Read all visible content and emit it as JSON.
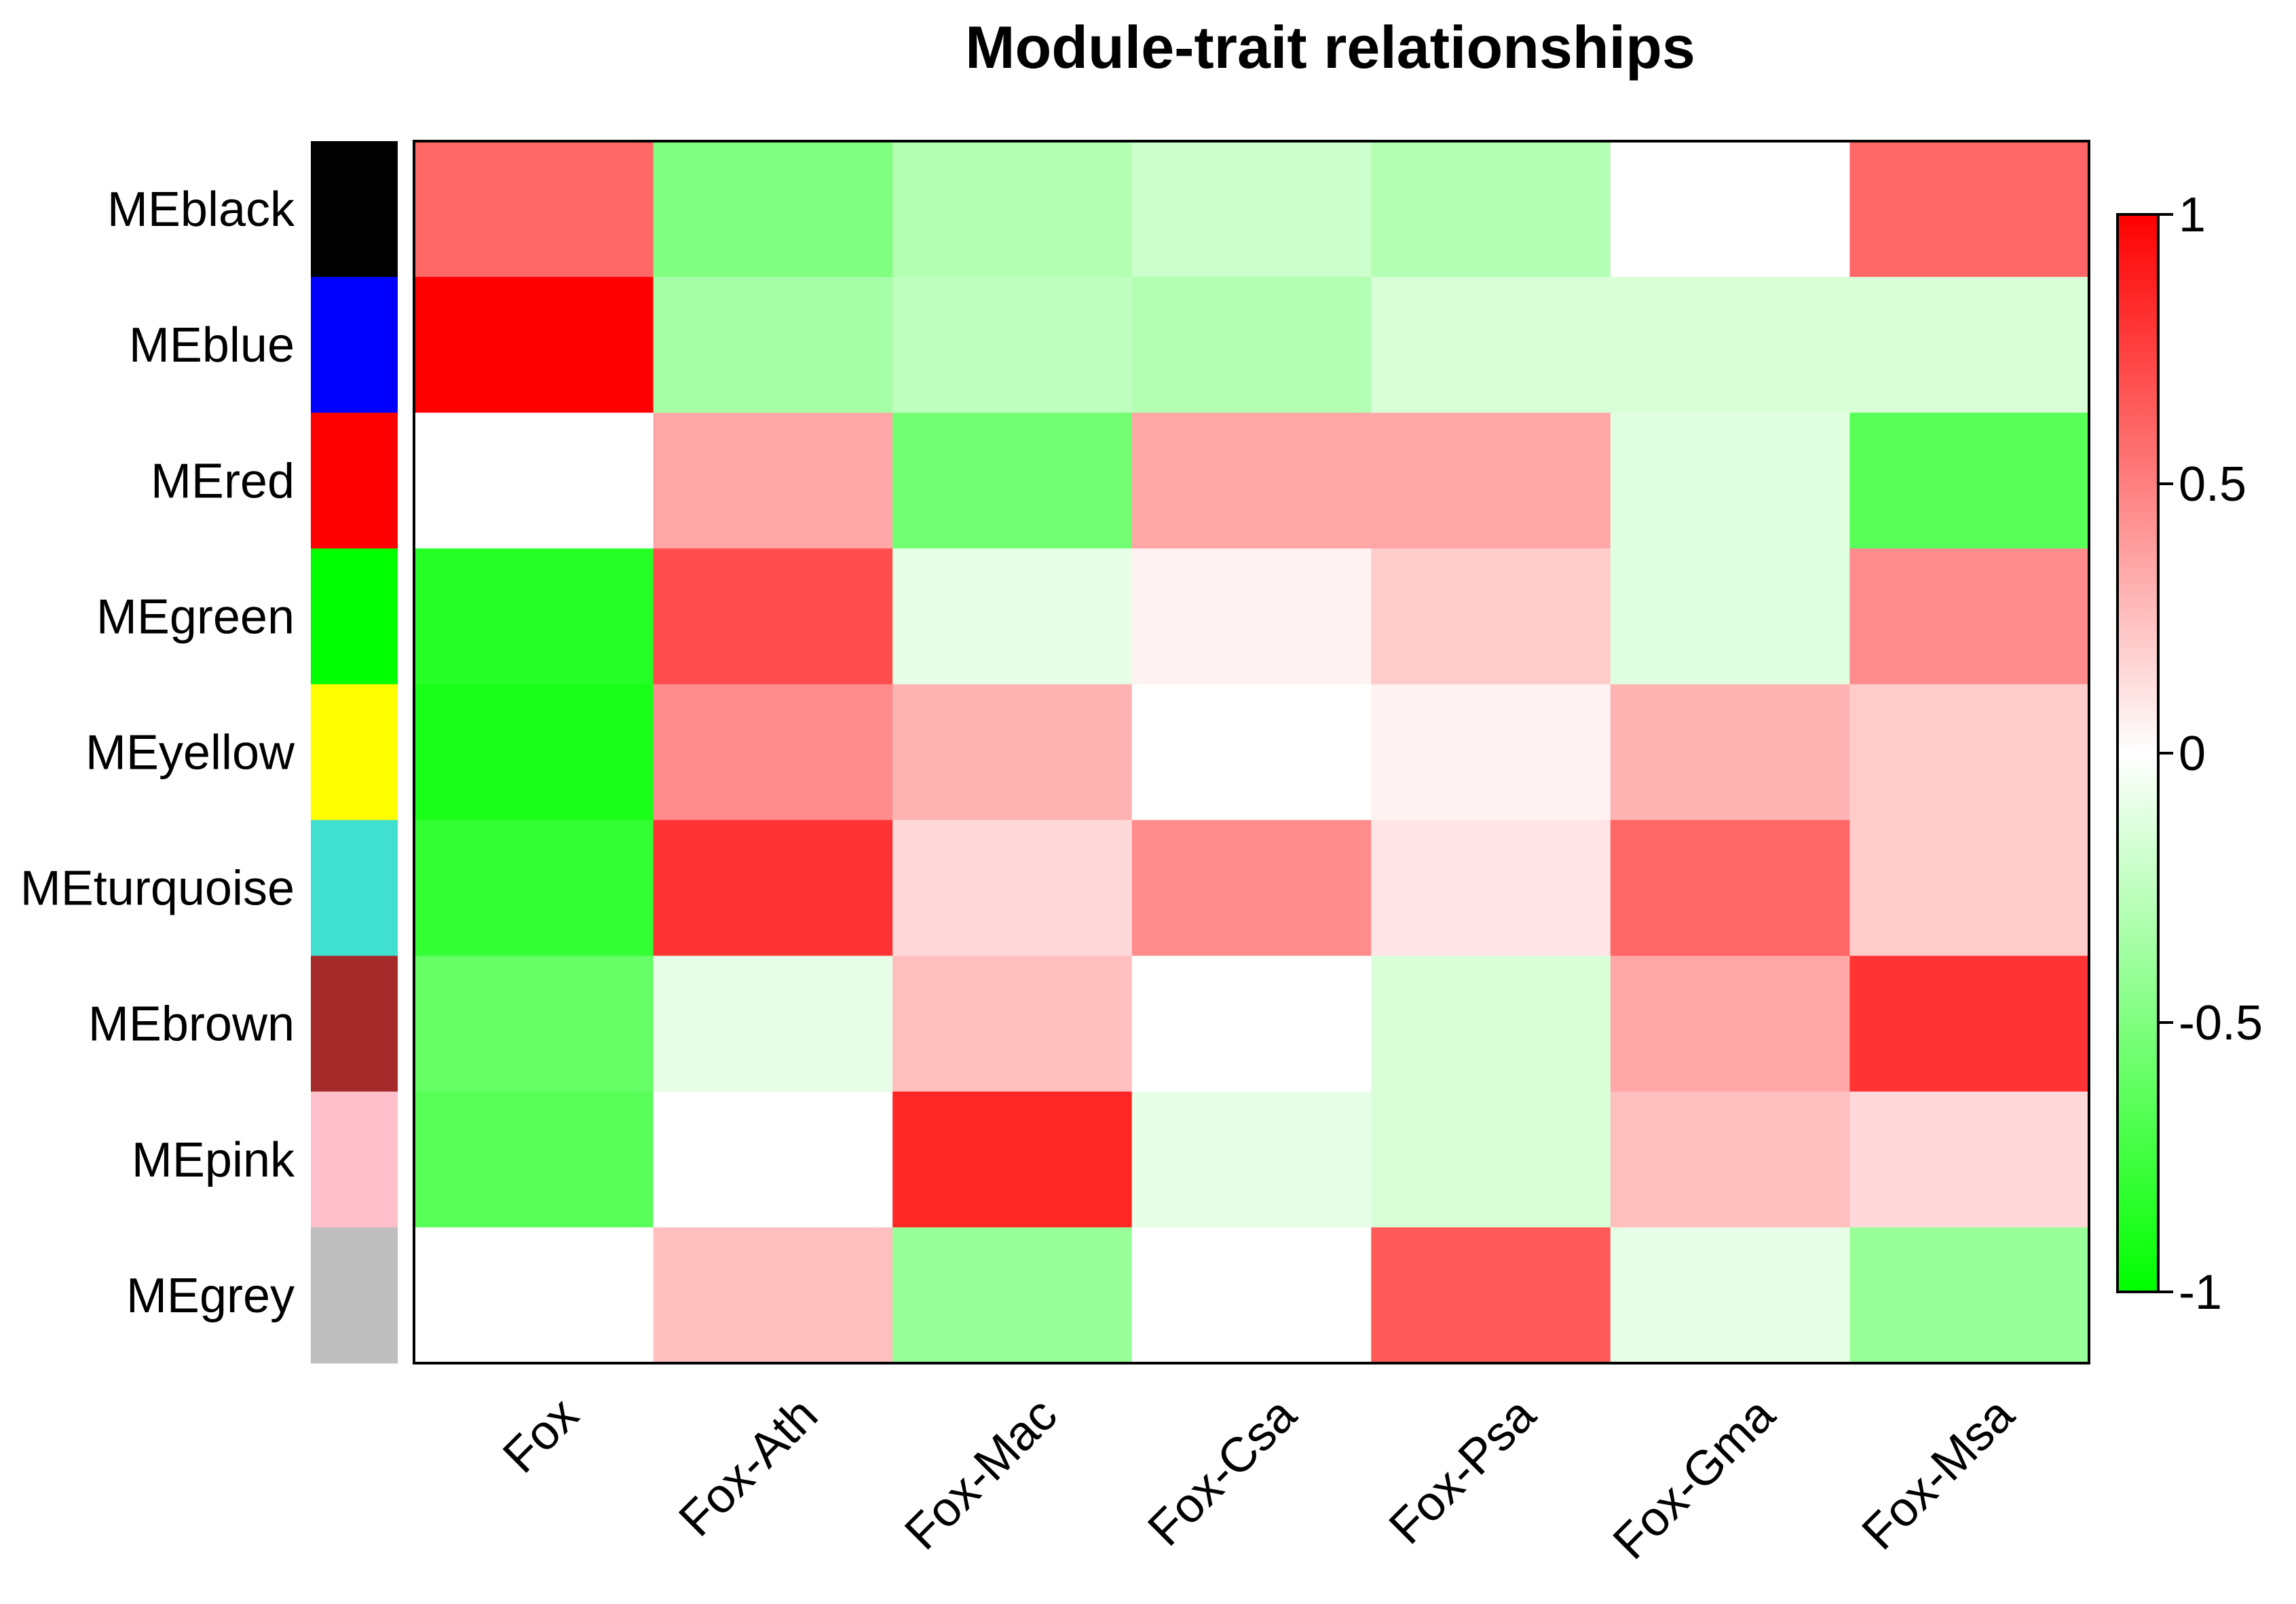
{
  "chart_data": {
    "type": "heatmap",
    "title": "Module-trait relationships",
    "rows": [
      "MEblack",
      "MEblue",
      "MEred",
      "MEgreen",
      "MEyellow",
      "MEturquoise",
      "MEbrown",
      "MEpink",
      "MEgrey"
    ],
    "row_colors": [
      "#000000",
      "#0000ff",
      "#ff0000",
      "#00ff00",
      "#ffff00",
      "#40e0d0",
      "#a52a2a",
      "#ffc0cb",
      "#bebebe"
    ],
    "columns": [
      "Fox",
      "Fox-Ath",
      "Fox-Mac",
      "Fox-Csa",
      "Fox-Psa",
      "Fox-Gma",
      "Fox-Msa"
    ],
    "values": [
      [
        0.6,
        -0.5,
        -0.3,
        -0.2,
        -0.3,
        0.0,
        0.6
      ],
      [
        1.0,
        -0.35,
        -0.25,
        -0.3,
        -0.15,
        -0.15,
        -0.15
      ],
      [
        0.0,
        0.35,
        -0.55,
        0.35,
        0.35,
        -0.12,
        -0.65
      ],
      [
        -0.85,
        0.7,
        -0.1,
        0.05,
        0.2,
        -0.12,
        0.45
      ],
      [
        -0.9,
        0.45,
        0.3,
        0.0,
        0.05,
        0.3,
        0.2
      ],
      [
        -0.8,
        0.8,
        0.15,
        0.45,
        0.1,
        0.6,
        0.2
      ],
      [
        -0.6,
        -0.1,
        0.25,
        0.0,
        -0.15,
        0.35,
        0.8
      ],
      [
        -0.65,
        0.0,
        0.85,
        -0.1,
        -0.15,
        0.25,
        0.15
      ],
      [
        0.0,
        0.25,
        -0.4,
        0.0,
        0.65,
        -0.1,
        -0.4
      ]
    ],
    "scale": {
      "min": -1,
      "max": 1,
      "low_color": "#00ff00",
      "mid_color": "#ffffff",
      "high_color": "#ff0000"
    },
    "colorbar_ticks": [
      {
        "value": 1,
        "label": "1"
      },
      {
        "value": 0.5,
        "label": "0.5"
      },
      {
        "value": 0,
        "label": "0"
      },
      {
        "value": -0.5,
        "label": "-0.5"
      },
      {
        "value": -1,
        "label": "-1"
      }
    ]
  }
}
